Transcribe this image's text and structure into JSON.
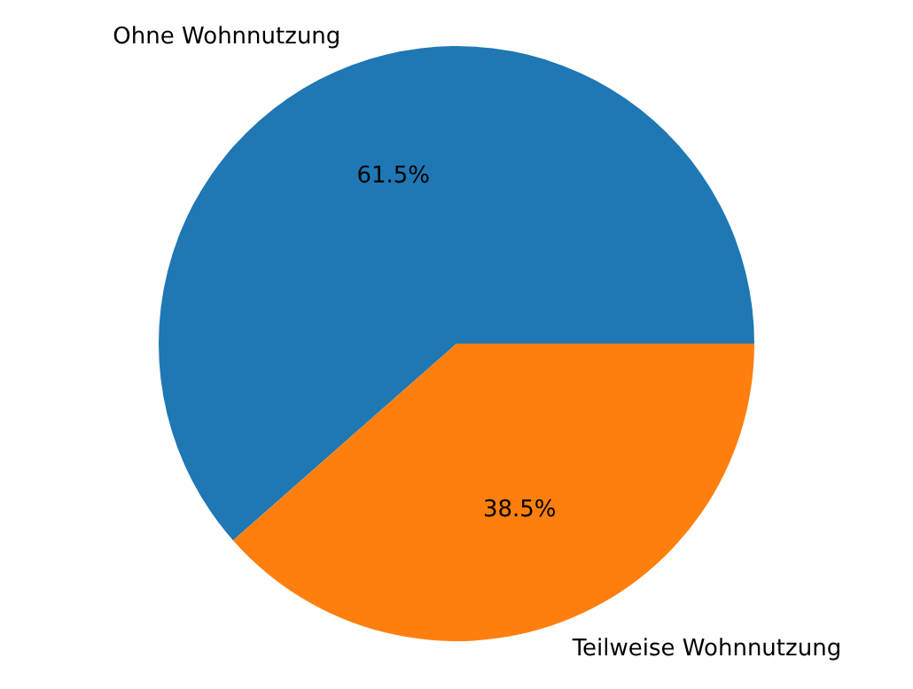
{
  "chart_data": {
    "type": "pie",
    "categories": [
      "Ohne Wohnnutzung",
      "Teilweise Wohnnutzung"
    ],
    "values": [
      61.5,
      38.5
    ],
    "colors": [
      "#1f77b4",
      "#ff7f0e"
    ],
    "value_labels": [
      "61.5%",
      "38.5%"
    ],
    "legend": false
  }
}
